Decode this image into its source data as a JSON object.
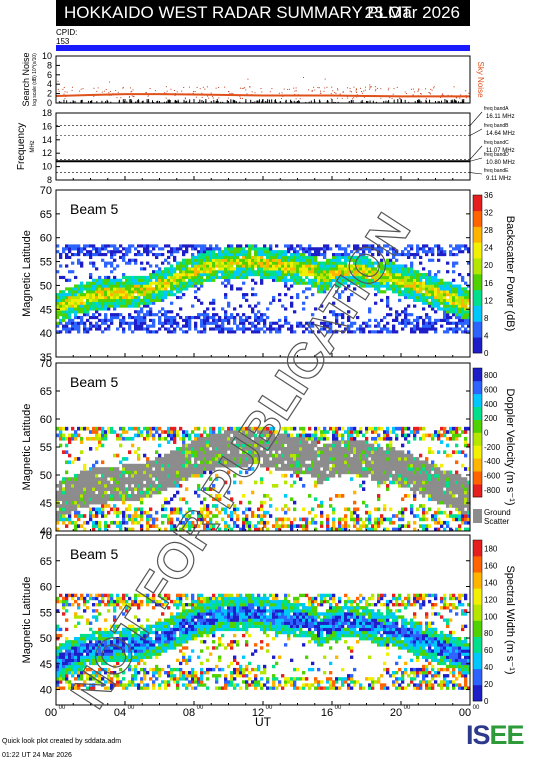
{
  "header": {
    "title": "HOKKAIDO WEST RADAR SUMMARY PLOT",
    "date": "23 Mar 2026"
  },
  "cpid": {
    "label": "CPID:",
    "value": "153"
  },
  "footer": {
    "line1": "Quick look plot created by sddata.adm",
    "line2": "01:22 UT 24 Mar 2026"
  },
  "logo": {
    "part1": "IS",
    "part2": "EE"
  },
  "watermark": "NOT FOR PUBLICATION",
  "colors": {
    "cpid_bar": "#1a1aff",
    "sky_noise": "#e0501a",
    "ground_scatter": "#8c8c8c"
  },
  "chart_data": [
    {
      "type": "scatter",
      "name": "search-noise",
      "ylabel": "Search Noise",
      "ylabel_units": "log scale (dB) 10^(x/10)",
      "ylim": [
        0,
        10
      ],
      "yticks": [
        "10",
        "8",
        "6",
        "4",
        "2",
        "0"
      ],
      "right_label": "Sky Noise",
      "series_x_hours": [
        0,
        2,
        4,
        6,
        8,
        10,
        12,
        14,
        16,
        18,
        20,
        22,
        24
      ],
      "sky_noise_values": [
        1.5,
        1.7,
        1.9,
        1.9,
        1.8,
        1.7,
        1.6,
        1.6,
        1.6,
        1.5,
        1.4,
        1.4,
        1.4
      ]
    },
    {
      "type": "line",
      "name": "frequency",
      "ylabel": "Frequency",
      "yunits": "MHz",
      "ylim": [
        8,
        18
      ],
      "yticks": [
        "18",
        "16",
        "14",
        "12",
        "10",
        "8"
      ],
      "tx_frequency_mhz": 10.8,
      "bands": [
        {
          "label": "freq bandA",
          "mhz_label": "16.11 MHz",
          "value": 16.11
        },
        {
          "label": "freq bandB",
          "mhz_label": "14.64 MHz",
          "value": 14.64
        },
        {
          "label": "freq bandC",
          "mhz_label": "11.07 MHz",
          "value": 11.07
        },
        {
          "label": "freq bandD",
          "mhz_label": "10.80 MHz",
          "value": 10.8
        },
        {
          "label": "freq bandE",
          "mhz_label": "9.11 MHz",
          "value": 9.11
        }
      ]
    },
    {
      "type": "heatmap",
      "name": "backscatter-power",
      "beam_label": "Beam  5",
      "ylabel": "Magnetic Latitude",
      "ylim": [
        35,
        70
      ],
      "yticks": [
        "70",
        "65",
        "60",
        "55",
        "50",
        "45",
        "40",
        "35"
      ],
      "colorbar_label": "Backscatter Power (dB)",
      "colorbar_ticks": [
        "36",
        "32",
        "28",
        "24",
        "20",
        "16",
        "12",
        "8",
        "4",
        "0"
      ],
      "colorbar_range": [
        0,
        36
      ],
      "colorbar_colors": [
        "#1e1ec8",
        "#2d64ff",
        "#00c8ff",
        "#00e08c",
        "#50d200",
        "#b4e600",
        "#f0f000",
        "#ffb400",
        "#ff6400",
        "#e61e1e"
      ]
    },
    {
      "type": "heatmap",
      "name": "doppler-velocity",
      "beam_label": "Beam  5",
      "ylabel": "Magnetic Latitude",
      "ylim": [
        40,
        70
      ],
      "yticks": [
        "70",
        "65",
        "60",
        "55",
        "50",
        "45",
        "40"
      ],
      "colorbar_label": "Doppler Velocity (m s⁻¹)",
      "colorbar_ticks": [
        "800",
        "600",
        "400",
        "200",
        "0",
        "-200",
        "-400",
        "-600",
        "-800"
      ],
      "colorbar_range": [
        -900,
        900
      ],
      "colorbar_colors": [
        "#e61e1e",
        "#ff6400",
        "#ffb400",
        "#f0f000",
        "#b4e600",
        "#50d200",
        "#00e08c",
        "#00c8ff",
        "#2d64ff",
        "#1e1ec8"
      ],
      "ground_scatter_label": [
        "Ground",
        "Scatter"
      ]
    },
    {
      "type": "heatmap",
      "name": "spectral-width",
      "beam_label": "Beam  5",
      "ylabel": "Magnetic Latitude",
      "ylim": [
        37,
        70
      ],
      "yticks": [
        "70",
        "65",
        "60",
        "55",
        "50",
        "45",
        "40"
      ],
      "colorbar_label": "Spectral Width (m s⁻¹)",
      "colorbar_ticks": [
        "180",
        "160",
        "140",
        "120",
        "100",
        "80",
        "60",
        "40",
        "20",
        "0"
      ],
      "colorbar_range": [
        0,
        190
      ],
      "colorbar_colors": [
        "#1e1ec8",
        "#2d64ff",
        "#00c8ff",
        "#00e08c",
        "#50d200",
        "#b4e600",
        "#f0f000",
        "#ffb400",
        "#ff6400",
        "#e61e1e"
      ]
    }
  ],
  "x_axis": {
    "label": "UT",
    "range_hours": [
      0,
      24
    ],
    "ticks": [
      {
        "h": 0,
        "label": "00",
        "sup": "00"
      },
      {
        "h": 4,
        "label": "04",
        "sup": "00"
      },
      {
        "h": 8,
        "label": "08",
        "sup": "00"
      },
      {
        "h": 12,
        "label": "12",
        "sup": "00"
      },
      {
        "h": 16,
        "label": "16",
        "sup": "00"
      },
      {
        "h": 20,
        "label": "20",
        "sup": "00"
      },
      {
        "h": 24,
        "label": "00",
        "sup": "00"
      }
    ]
  }
}
